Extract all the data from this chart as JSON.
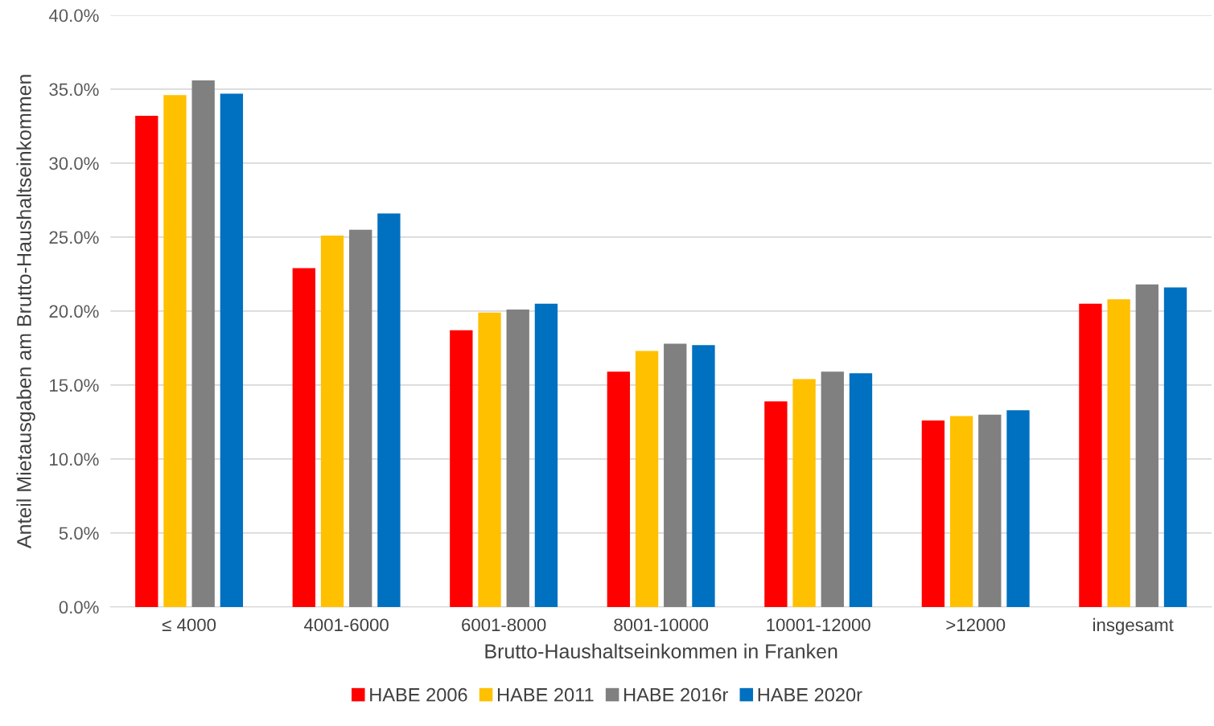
{
  "chart_data": {
    "type": "bar",
    "xlabel": "Brutto-Haushaltseinkommen in Franken",
    "ylabel": "Anteil Mietausgaben am Brutto-Haushaltseinkommen",
    "categories": [
      "≤ 4000",
      "4001-6000",
      "6001-8000",
      "8001-10000",
      "10001-12000",
      ">12000",
      "insgesamt"
    ],
    "series": [
      {
        "name": "HABE 2006",
        "color": "#ff0000",
        "values": [
          33.2,
          22.9,
          18.7,
          15.9,
          13.9,
          12.6,
          20.5
        ]
      },
      {
        "name": "HABE 2011",
        "color": "#ffc000",
        "values": [
          34.6,
          25.1,
          19.9,
          17.3,
          15.4,
          12.9,
          20.8
        ]
      },
      {
        "name": "HABE 2016r",
        "color": "#808080",
        "values": [
          35.6,
          25.5,
          20.1,
          17.8,
          15.9,
          13.0,
          21.8
        ]
      },
      {
        "name": "HABE 2020r",
        "color": "#0070c0",
        "values": [
          34.7,
          26.6,
          20.5,
          17.7,
          15.8,
          13.3,
          21.6
        ]
      }
    ],
    "ylim": [
      0,
      40
    ],
    "yticks": [
      {
        "value": 0,
        "label": "0.0%"
      },
      {
        "value": 5,
        "label": "5.0%"
      },
      {
        "value": 10,
        "label": "10.0%"
      },
      {
        "value": 15,
        "label": "15.0%"
      },
      {
        "value": 20,
        "label": "20.0%"
      },
      {
        "value": 25,
        "label": "25.0%"
      },
      {
        "value": 30,
        "label": "30.0%"
      },
      {
        "value": 35,
        "label": "35.0%"
      },
      {
        "value": 40,
        "label": "40.0%"
      }
    ],
    "grid": "y",
    "legend": "bottom"
  }
}
